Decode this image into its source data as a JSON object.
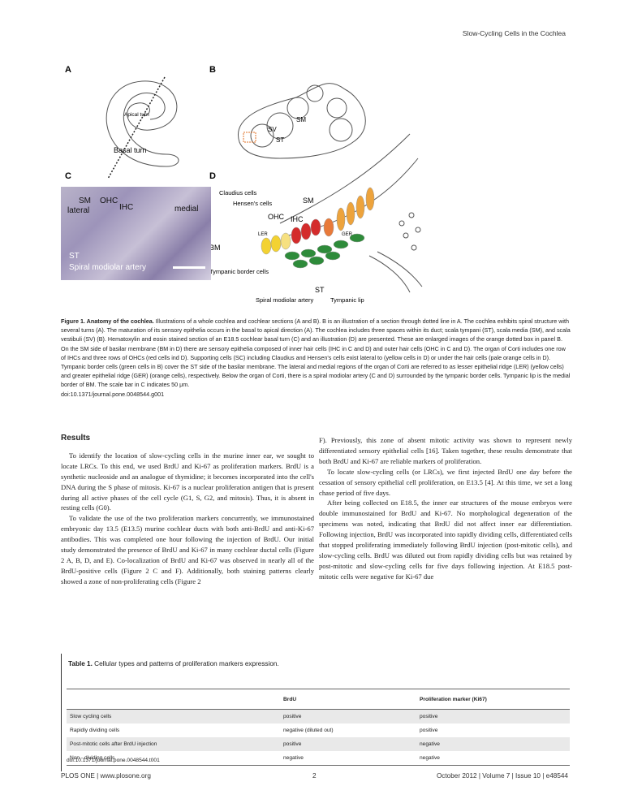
{
  "running_head": "Slow-Cycling Cells in the Cochlea",
  "figure": {
    "panel_labels": [
      "A",
      "B",
      "C",
      "D"
    ],
    "panel_a": {
      "apical_turn": "Apical turn",
      "basal_turn": "Basal turn"
    },
    "panel_b": {
      "sv": "SV",
      "st": "ST",
      "sm": "SM"
    },
    "panel_c": {
      "sm_lateral_1": "SM",
      "sm_lateral_2": "lateral",
      "ohc": "OHC",
      "ihc": "IHC",
      "medial": "medial",
      "st": "ST",
      "artery": "Spiral modiolar artery"
    },
    "panel_d": {
      "claudius": "Claudius cells",
      "hensen": "Hensen's cells",
      "sm": "SM",
      "ohc": "OHC",
      "ihc": "IHC",
      "ler": "LER",
      "ger": "GER",
      "bm": "BM",
      "tympanic_border": "Tympanic border cells",
      "st": "ST",
      "artery": "Spiral modiolar artery",
      "tympanic_lip": "Tympanic lip"
    }
  },
  "caption": {
    "bold": "Figure 1. Anatomy of the cochlea.",
    "text": " Illustrations of a whole cochlea and cochlear sections (A and B). B is an illustration of a section through dotted line in A. The cochlea exhibits spiral structure with several turns (A). The maturation of its sensory epithelia occurs in the basal to apical direction (A). The cochlea includes three spaces within its duct; scala tympani (ST), scala media (SM), and scala vestibuli (SV) (B). Hematoxylin and eosin stained section of an E18.5 cochlear basal turn (C) and an illustration (D) are presented. These are enlarged images of the orange dotted box in panel B. On the SM side of basilar membrane (BM in D) there are sensory epithelia composed of inner hair cells (IHC in C and D) and outer hair cells (OHC in C and D). The organ of Corti includes one row of IHCs and three rows of OHCs (red cells ind D). Supporting cells (SC) including Claudius and Hensen's cells exist lateral to (yellow cells in D) or under the hair cells (pale orange cells in D). Tympanic border cells (green cells in B) cover the ST side of the basilar membrane. The lateral and medial regions of the organ of Corti are referred to as lesser epithelial ridge (LER) (yellow cells) and greater epithelial ridge (GER) (orange cells), respectively. Below the organ of Corti, there is a spiral modiolar artery (C and D) surrounded by the tympanic border cells. Tympanic lip is the medial border of BM. The scale bar in C indicates 50 μm.",
    "doi": "doi:10.1371/journal.pone.0048544.g001"
  },
  "results": {
    "heading": "Results",
    "left_paragraphs": [
      "To identify the location of slow-cycling cells in the murine inner ear, we sought to locate LRCs. To this end, we used BrdU and Ki-67 as proliferation markers. BrdU is a synthetic nucleoside and an analogue of thymidine; it becomes incorporated into the cell's DNA during the S phase of mitosis. Ki-67 is a nuclear proliferation antigen that is present during all active phases of the cell cycle (G1, S, G2, and mitosis). Thus, it is absent in resting cells (G0).",
      "To validate the use of the two proliferation markers concurrently, we immunostained embryonic day 13.5 (E13.5) murine cochlear ducts with both anti-BrdU and anti-Ki-67 antibodies. This was completed one hour following the injection of BrdU. Our initial study demonstrated the presence of BrdU and Ki-67 in many cochlear ductal cells (Figure 2 A, B, D, and E). Co-localization of BrdU and Ki-67 was observed in nearly all of the BrdU-positive cells (Figure 2 C and F). Additionally, both staining patterns clearly showed a zone of non-proliferating cells (Figure 2"
    ],
    "right_paragraphs": [
      "F). Previously, this zone of absent mitotic activity was shown to represent newly differentiated sensory epithelial cells [16]. Taken together, these results demonstrate that both BrdU and Ki-67 are reliable markers of proliferation.",
      "To locate slow-cycling cells (or LRCs), we first injected BrdU one day before the cessation of sensory epithelial cell proliferation, on E13.5 [4]. At this time, we set a long chase period of five days.",
      "After being collected on E18.5, the inner ear structures of the mouse embryos were double immunostained for BrdU and Ki-67. No morphological degeneration of the specimens was noted, indicating that BrdU did not affect inner ear differentiation. Following injection, BrdU was incorporated into rapidly dividing cells, differentiated cells that stopped proliferating immediately following BrdU injection (post-mitotic cells), and slow-cycling cells. BrdU was diluted out from rapidly dividing cells but was retained by post-mitotic and slow-cycling cells for five days following injection. At E18.5 post-mitotic cells were negative for Ki-67 due"
    ]
  },
  "table": {
    "title_bold": "Table 1.",
    "title_text": " Cellular types and patterns of proliferation markers expression.",
    "headers": [
      "",
      "BrdU",
      "Proliferation marker (Ki67)"
    ],
    "rows": [
      [
        "Slow cycling cells",
        "positive",
        "positive"
      ],
      [
        "Rapidly dividing cells",
        "negative (diluted out)",
        "positive"
      ],
      [
        "Post-mitotic cells after BrdU injection",
        "positive",
        "negative"
      ],
      [
        "Non - dividing cells",
        "negative",
        "negative"
      ]
    ],
    "doi": "doi:10.1371/journal.pone.0048544.t001"
  },
  "footer": {
    "left": "PLOS ONE | www.plosone.org",
    "center": "2",
    "right": "October 2012 | Volume 7 | Issue 10 | e48544"
  }
}
